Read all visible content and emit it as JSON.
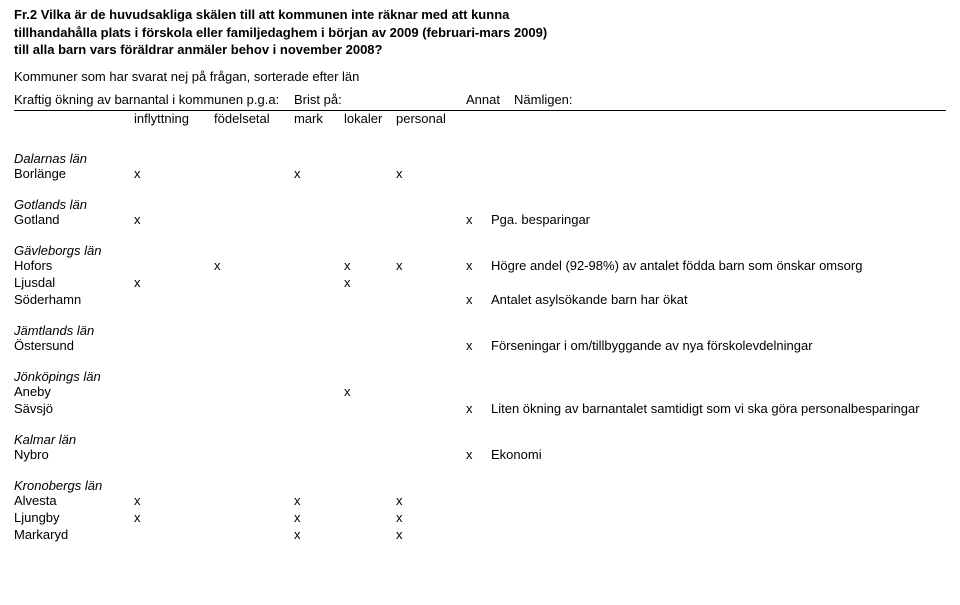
{
  "title_lines": [
    "Fr.2 Vilka är de huvudsakliga skälen till att kommunen inte räknar med att kunna",
    "tillhandahålla plats i förskola eller familjedaghem i början av 2009 (februari-mars 2009)",
    "till alla barn vars föräldrar anmäler behov i november 2008?"
  ],
  "subtitle": "Kommuner som har svarat nej på frågan, sorterade efter län",
  "headers": {
    "left_top": "Kraftig ökning av barnantal i kommunen p.g.a:",
    "brist": "Brist på:",
    "annat": "Annat",
    "namligen": "Nämligen:",
    "inflyttning": "inflyttning",
    "fodelsetal": "födelsetal",
    "mark": "mark",
    "lokaler": "lokaler",
    "personal": "personal"
  },
  "regions": [
    {
      "name": "Dalarnas län",
      "rows": [
        {
          "name": "Borlänge",
          "infl": "x",
          "fod": "",
          "mark": "x",
          "lok": "",
          "pers": "x",
          "annat": "",
          "naml": ""
        }
      ]
    },
    {
      "name": "Gotlands län",
      "rows": [
        {
          "name": "Gotland",
          "infl": "x",
          "fod": "",
          "mark": "",
          "lok": "",
          "pers": "",
          "annat": "x",
          "naml": "Pga. besparingar"
        }
      ]
    },
    {
      "name": "Gävleborgs län",
      "rows": [
        {
          "name": "Hofors",
          "infl": "",
          "fod": "x",
          "mark": "",
          "lok": "x",
          "pers": "x",
          "annat": "x",
          "naml": "Högre andel (92-98%) av antalet födda barn som önskar omsorg"
        },
        {
          "name": "Ljusdal",
          "infl": "x",
          "fod": "",
          "mark": "",
          "lok": "x",
          "pers": "",
          "annat": "",
          "naml": ""
        },
        {
          "name": "Söderhamn",
          "infl": "",
          "fod": "",
          "mark": "",
          "lok": "",
          "pers": "",
          "annat": "x",
          "naml": "Antalet asylsökande barn har ökat"
        }
      ]
    },
    {
      "name": "Jämtlands län",
      "rows": [
        {
          "name": "Östersund",
          "infl": "",
          "fod": "",
          "mark": "",
          "lok": "",
          "pers": "",
          "annat": "x",
          "naml": "Förseningar i om/tillbyggande av nya förskolevdelningar"
        }
      ]
    },
    {
      "name": "Jönköpings län",
      "rows": [
        {
          "name": "Aneby",
          "infl": "",
          "fod": "",
          "mark": "",
          "lok": "x",
          "pers": "",
          "annat": "",
          "naml": ""
        },
        {
          "name": "Sävsjö",
          "infl": "",
          "fod": "",
          "mark": "",
          "lok": "",
          "pers": "",
          "annat": "x",
          "naml": "Liten ökning av barnantalet samtidigt som vi ska göra personalbesparingar"
        }
      ]
    },
    {
      "name": "Kalmar län",
      "rows": [
        {
          "name": "Nybro",
          "infl": "",
          "fod": "",
          "mark": "",
          "lok": "",
          "pers": "",
          "annat": "x",
          "naml": "Ekonomi"
        }
      ]
    },
    {
      "name": "Kronobergs län",
      "rows": [
        {
          "name": "Alvesta",
          "infl": "x",
          "fod": "",
          "mark": "x",
          "lok": "",
          "pers": "x",
          "annat": "",
          "naml": ""
        },
        {
          "name": "Ljungby",
          "infl": "x",
          "fod": "",
          "mark": "x",
          "lok": "",
          "pers": "x",
          "annat": "",
          "naml": ""
        },
        {
          "name": "Markaryd",
          "infl": "",
          "fod": "",
          "mark": "x",
          "lok": "",
          "pers": "x",
          "annat": "",
          "naml": ""
        }
      ]
    }
  ]
}
